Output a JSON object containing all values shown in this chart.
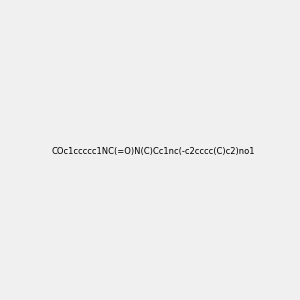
{
  "smiles": "COc1ccccc1NC(=O)N(C)Cc1nc(-c2cccc(C)c2)no1",
  "image_size": 300,
  "background_color": "#f0f0f0",
  "title": ""
}
